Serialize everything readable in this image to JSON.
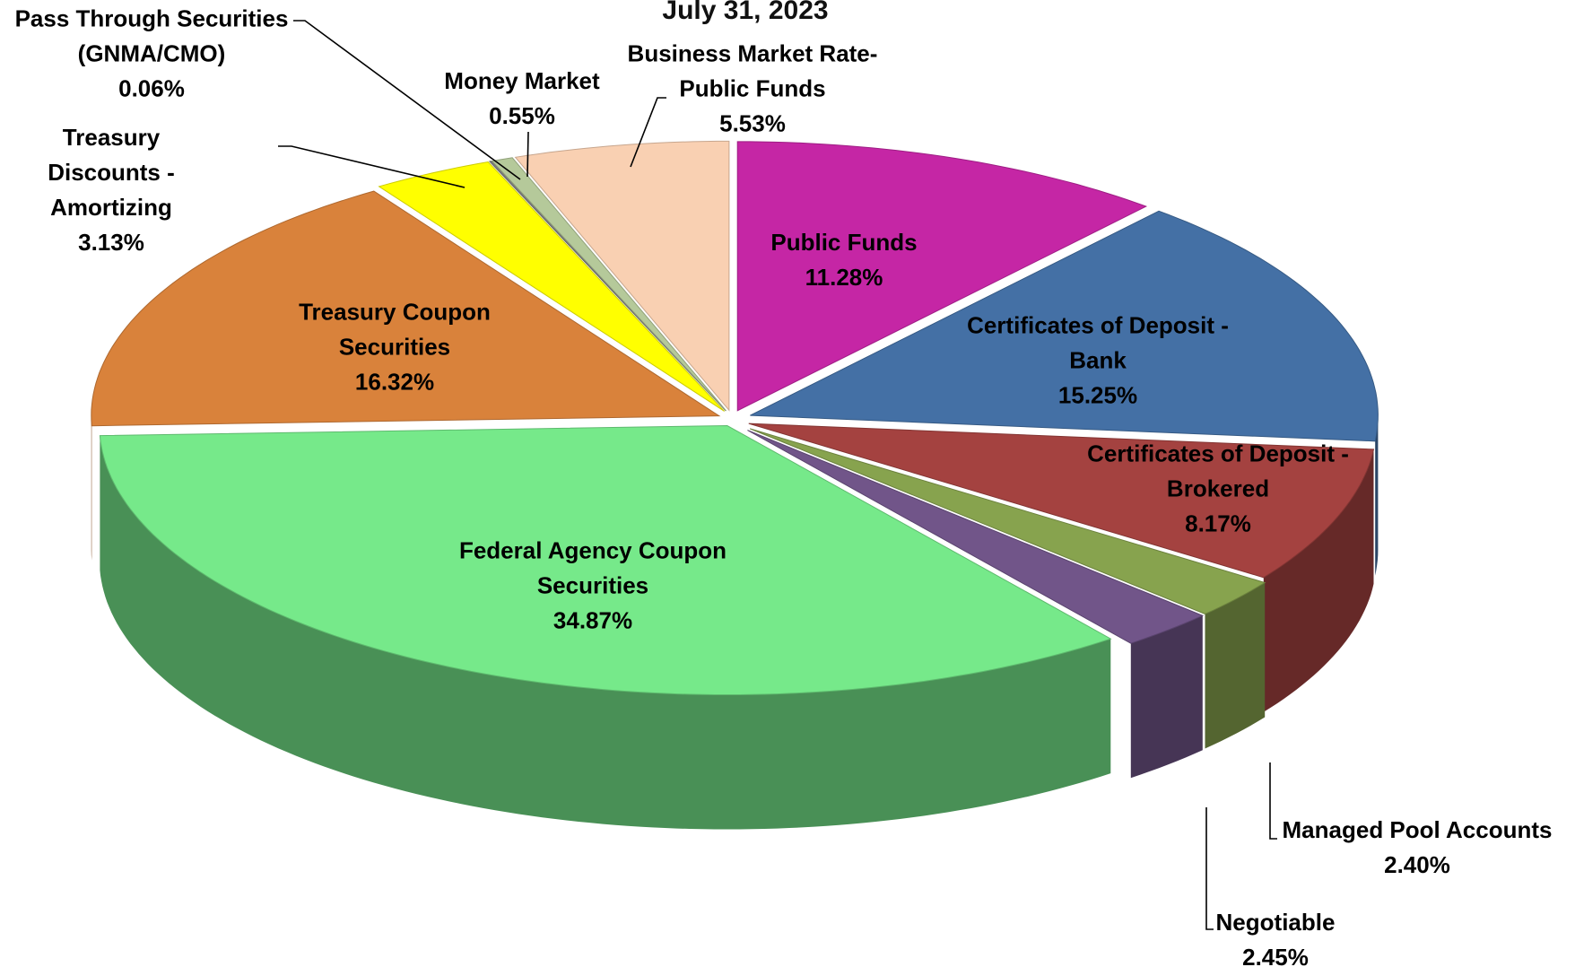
{
  "chart_data": {
    "type": "pie3d",
    "title": "July 31, 2023",
    "categories": [
      "Public Funds",
      "Certificates of Deposit - Bank",
      "Certificates of Deposit - Brokered",
      "Managed Pool Accounts",
      "Negotiable",
      "Federal Agency Coupon Securities",
      "Treasury Coupon Securities",
      "Treasury Discounts - Amortizing",
      "Pass Through Securities (GNMA/CMO)",
      "Money Market",
      "Business Market Rate-Public Funds"
    ],
    "values": [
      11.28,
      15.25,
      8.17,
      2.4,
      2.45,
      34.87,
      16.32,
      3.13,
      0.06,
      0.55,
      5.53
    ],
    "value_labels": [
      "11.28%",
      "15.25%",
      "8.17%",
      "2.40%",
      "2.45%",
      "34.87%",
      "16.32%",
      "3.13%",
      "0.06%",
      "0.55%",
      "5.53%"
    ],
    "colors": [
      "#c526a5",
      "#4470a5",
      "#a44240",
      "#87a34e",
      "#715589",
      "#76e98a",
      "#d9823b",
      "#ffff00",
      "#808080",
      "#b5c99a",
      "#f9d0b2"
    ]
  }
}
